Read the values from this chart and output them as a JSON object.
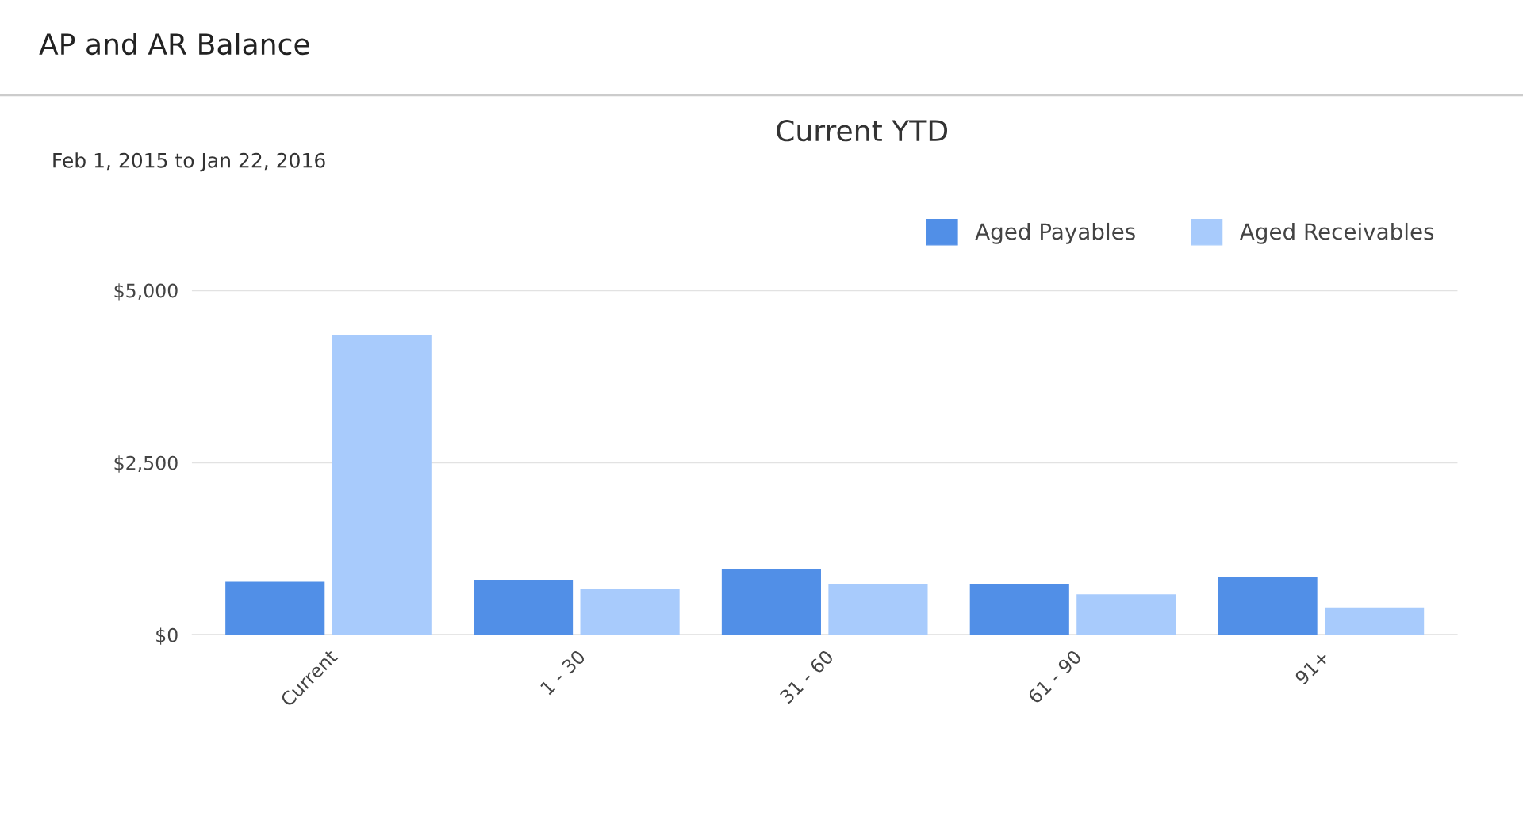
{
  "chart_data": {
    "type": "bar",
    "title": "Current YTD",
    "subtitle": "Feb 1, 2015 to Jan 22, 2016",
    "annotations": [
      "AP and AR Balance"
    ],
    "categories": [
      "Current",
      "1 - 30",
      "31 - 60",
      "61 - 90",
      "91+"
    ],
    "series": [
      {
        "name": "Aged Payables",
        "color": "#518fe7",
        "values": [
          770,
          800,
          960,
          740,
          840
        ]
      },
      {
        "name": "Aged Receivables",
        "color": "#a8cbfc",
        "values": [
          4350,
          660,
          740,
          590,
          400
        ]
      }
    ],
    "ylim": [
      0,
      5000
    ],
    "yticks": [
      {
        "value": 0,
        "label": "$0"
      },
      {
        "value": 2500,
        "label": "$2,500"
      },
      {
        "value": 5000,
        "label": "$5,000"
      }
    ],
    "grid": "y",
    "legend": "top right"
  }
}
